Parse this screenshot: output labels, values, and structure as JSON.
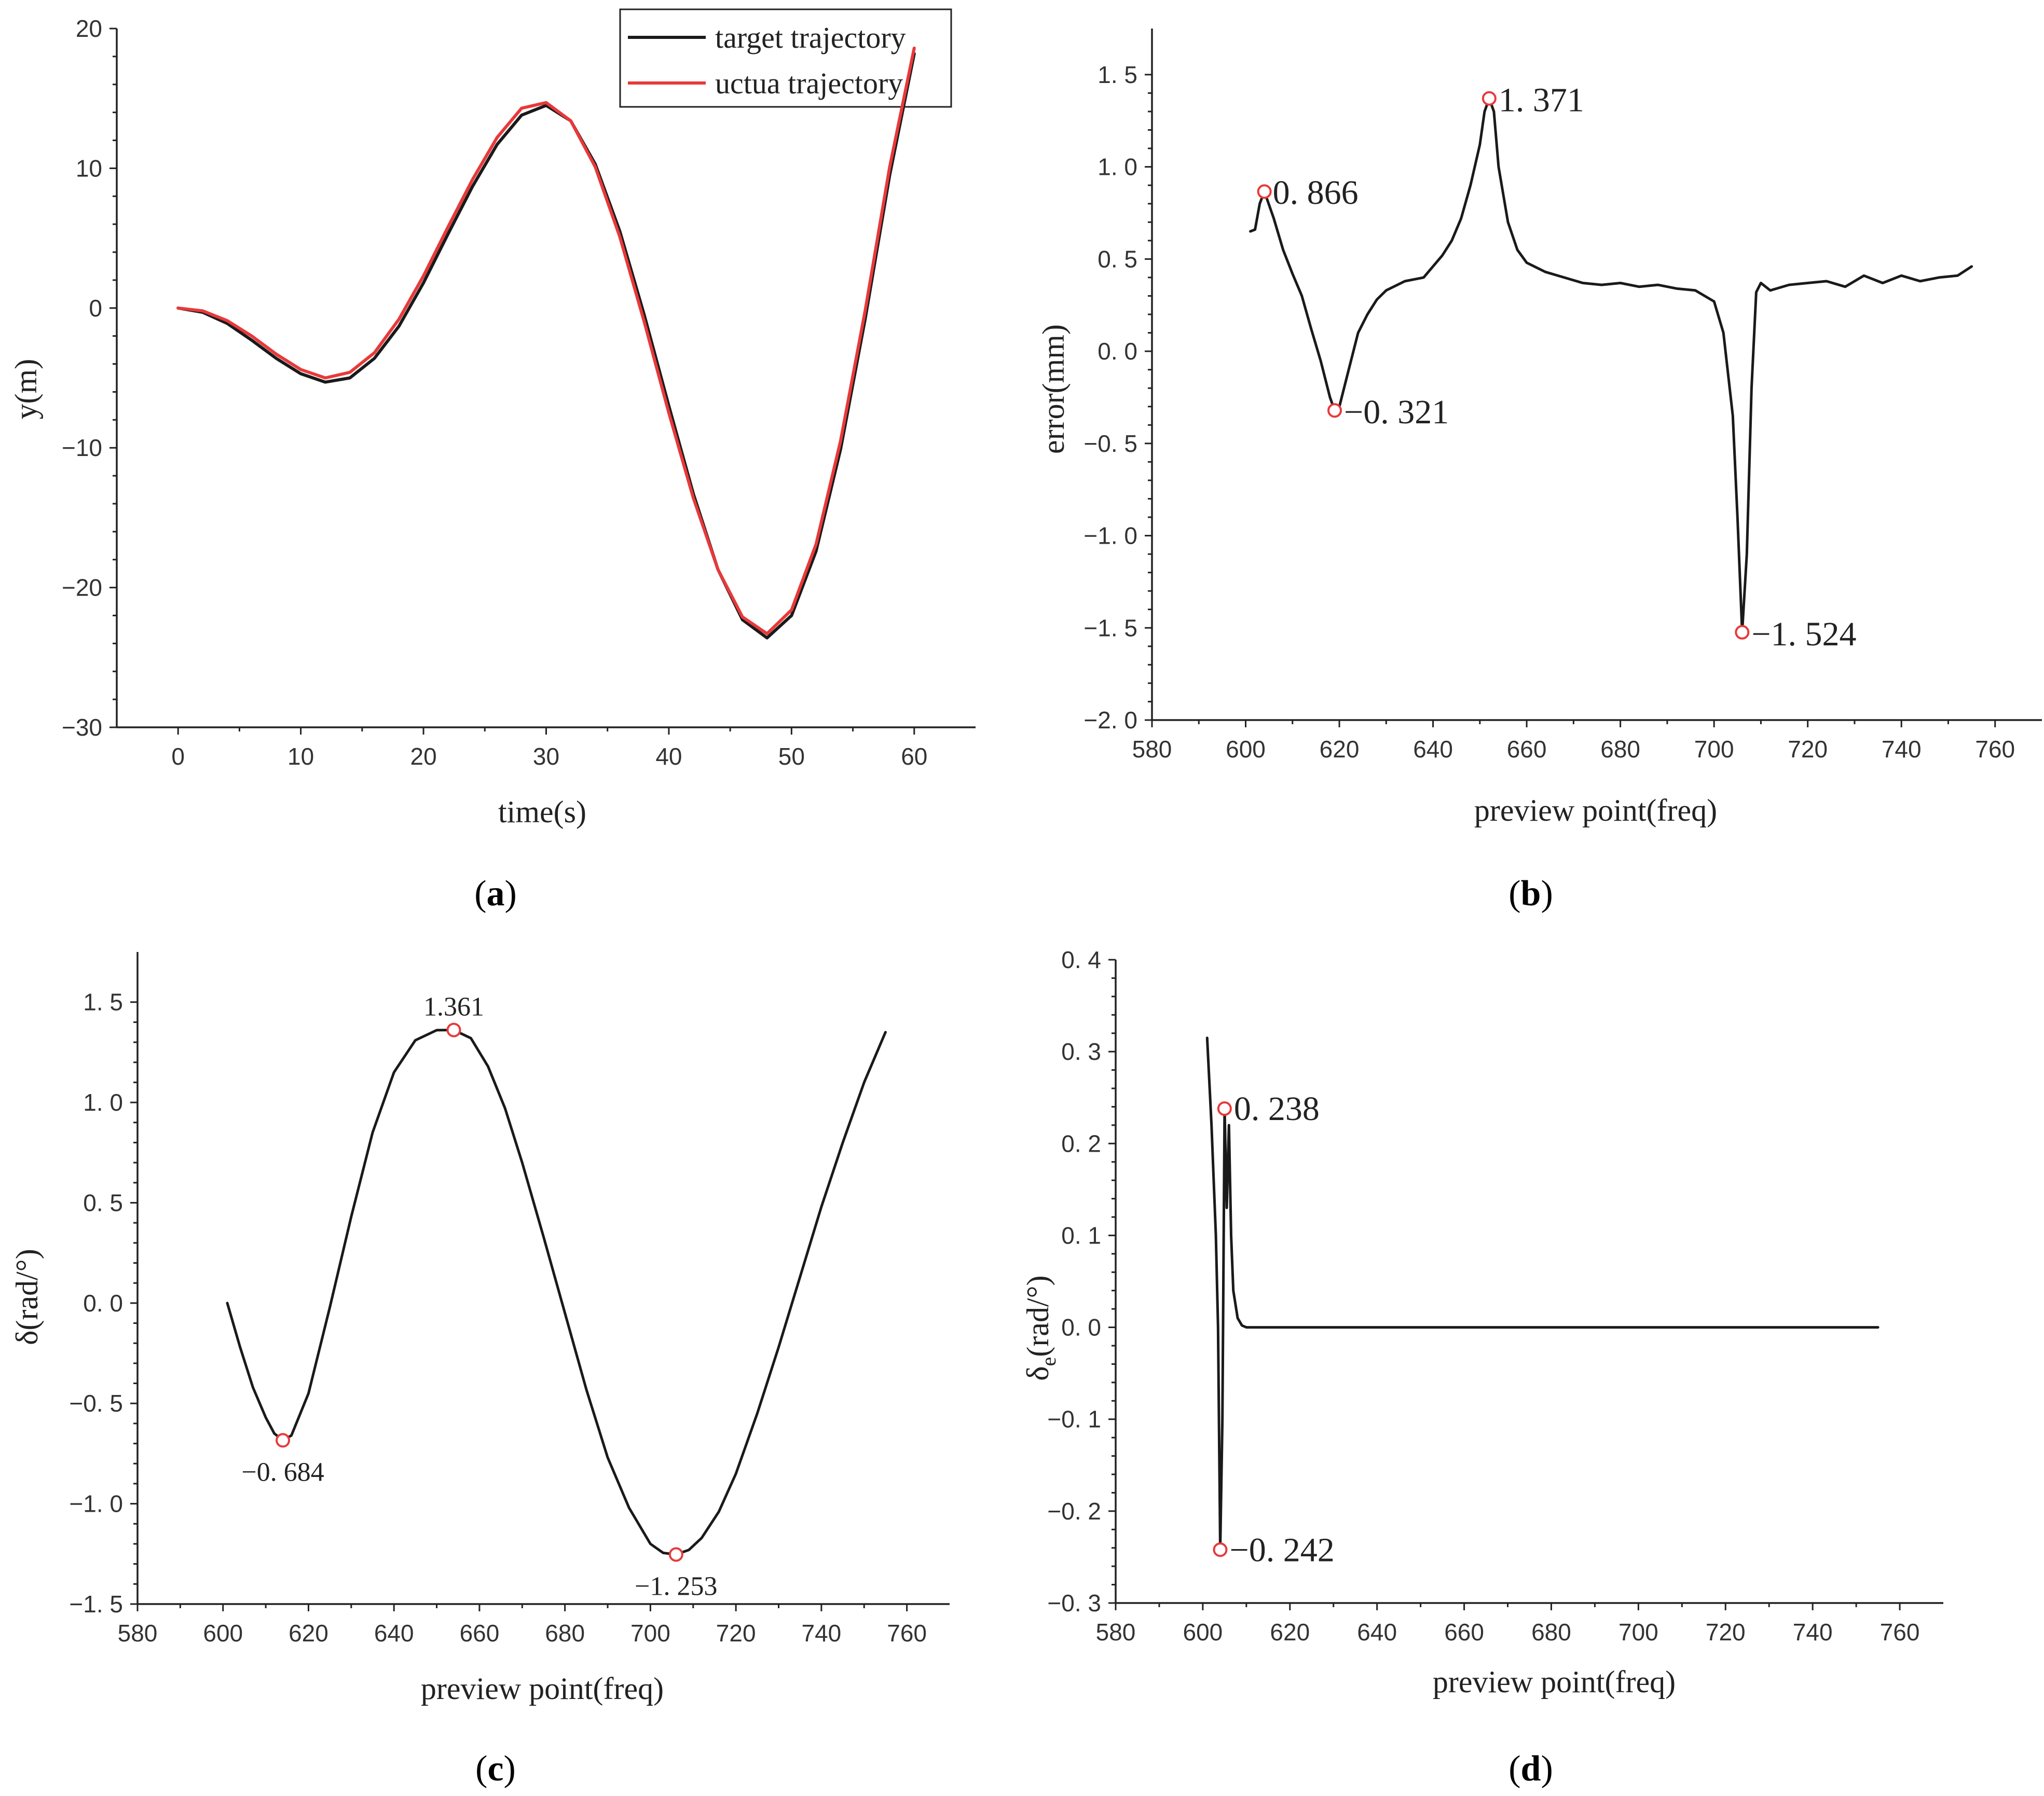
{
  "colors": {
    "black_line": "#1a1a1a",
    "red_line": "#e8393a",
    "marker": "#e8393a",
    "axis": "#222222"
  },
  "chart_data": [
    {
      "id": "a",
      "type": "line",
      "caption_prefix": "(",
      "caption_letter": "a",
      "caption_suffix": ")",
      "xlabel": "time(s)",
      "ylabel": "y(m)",
      "xlim": [
        -5,
        65
      ],
      "ylim": [
        -30,
        20
      ],
      "xticks": [
        0,
        10,
        20,
        30,
        40,
        50,
        60
      ],
      "yticks": [
        -30,
        -20,
        -10,
        0,
        10,
        20
      ],
      "legend": [
        "target trajectory",
        "uctua trajectory"
      ],
      "legend_position": "top-right",
      "series": [
        {
          "name": "target trajectory",
          "color": "#1a1a1a",
          "x": [
            0,
            2,
            4,
            6,
            8,
            10,
            12,
            14,
            16,
            18,
            20,
            22,
            24,
            26,
            28,
            30,
            32,
            34,
            36,
            38,
            40,
            42,
            44,
            46,
            48,
            50,
            52,
            54,
            56,
            58,
            60
          ],
          "y": [
            0,
            -0.3,
            -1.1,
            -2.3,
            -3.6,
            -4.7,
            -5.3,
            -5.0,
            -3.6,
            -1.3,
            1.8,
            5.3,
            8.7,
            11.7,
            13.8,
            14.5,
            13.4,
            10.3,
            5.5,
            -0.5,
            -7.0,
            -13.3,
            -18.7,
            -22.3,
            -23.6,
            -22.0,
            -17.4,
            -10.1,
            -0.8,
            9.5,
            18.2
          ]
        },
        {
          "name": "uctua trajectory",
          "color": "#e8393a",
          "x": [
            0,
            2,
            4,
            6,
            8,
            10,
            12,
            14,
            16,
            18,
            20,
            22,
            24,
            26,
            28,
            30,
            32,
            34,
            36,
            38,
            40,
            42,
            44,
            46,
            48,
            50,
            52,
            54,
            56,
            58,
            60
          ],
          "y": [
            0,
            -0.2,
            -0.9,
            -2.0,
            -3.3,
            -4.4,
            -5.0,
            -4.6,
            -3.2,
            -0.8,
            2.3,
            5.8,
            9.2,
            12.2,
            14.3,
            14.7,
            13.4,
            10.1,
            5.1,
            -1.0,
            -7.5,
            -13.6,
            -18.7,
            -22.1,
            -23.3,
            -21.6,
            -16.9,
            -9.5,
            -0.2,
            10.1,
            18.6
          ]
        }
      ]
    },
    {
      "id": "b",
      "type": "line",
      "caption_prefix": "(",
      "caption_letter": "b",
      "caption_suffix": ")",
      "xlabel": "preview point(freq)",
      "ylabel": "error(mm)",
      "xlim": [
        580,
        770
      ],
      "ylim": [
        -2.0,
        1.75
      ],
      "xticks": [
        580,
        600,
        620,
        640,
        660,
        680,
        700,
        720,
        740,
        760
      ],
      "yticks": [
        -2.0,
        -1.5,
        -1.0,
        -0.5,
        0.0,
        0.5,
        1.0,
        1.5
      ],
      "ytick_labels": [
        "−2. 0",
        "−1. 5",
        "−1. 0",
        "−0. 5",
        "0. 0",
        "0. 5",
        "1. 0",
        "1. 5"
      ],
      "series": [
        {
          "name": "error",
          "color": "#1a1a1a",
          "x": [
            601,
            602,
            603,
            604,
            606,
            608,
            610,
            612,
            614,
            616,
            618,
            619,
            620,
            622,
            624,
            626,
            628,
            630,
            634,
            638,
            642,
            644,
            646,
            648,
            650,
            651,
            652,
            653,
            654,
            656,
            658,
            660,
            664,
            668,
            672,
            676,
            680,
            684,
            688,
            692,
            696,
            700,
            702,
            704,
            705,
            706,
            707,
            708,
            709,
            710,
            712,
            716,
            720,
            724,
            728,
            732,
            736,
            740,
            744,
            748,
            752,
            755
          ],
          "y": [
            0.65,
            0.66,
            0.8,
            0.866,
            0.72,
            0.55,
            0.42,
            0.3,
            0.12,
            -0.05,
            -0.25,
            -0.321,
            -0.3,
            -0.1,
            0.1,
            0.2,
            0.28,
            0.33,
            0.38,
            0.4,
            0.52,
            0.6,
            0.72,
            0.9,
            1.12,
            1.3,
            1.371,
            1.3,
            1.0,
            0.7,
            0.55,
            0.48,
            0.43,
            0.4,
            0.37,
            0.36,
            0.37,
            0.35,
            0.36,
            0.34,
            0.33,
            0.27,
            0.1,
            -0.35,
            -0.9,
            -1.524,
            -1.1,
            -0.2,
            0.32,
            0.37,
            0.33,
            0.36,
            0.37,
            0.38,
            0.35,
            0.41,
            0.37,
            0.41,
            0.38,
            0.4,
            0.41,
            0.46
          ]
        }
      ],
      "annotations": [
        {
          "x": 604,
          "y": 0.866,
          "label": "0. 866"
        },
        {
          "x": 619,
          "y": -0.321,
          "label": "−0. 321"
        },
        {
          "x": 652,
          "y": 1.371,
          "label": "1. 371"
        },
        {
          "x": 706,
          "y": -1.524,
          "label": "−1. 524"
        }
      ]
    },
    {
      "id": "c",
      "type": "line",
      "caption_prefix": "(",
      "caption_letter": "c",
      "caption_suffix": ")",
      "xlabel": "preview point(freq)",
      "ylabel": "δ(rad/°)",
      "xlim": [
        580,
        770
      ],
      "ylim": [
        -1.5,
        1.75
      ],
      "xticks": [
        580,
        600,
        620,
        640,
        660,
        680,
        700,
        720,
        740,
        760
      ],
      "yticks": [
        -1.5,
        -1.0,
        -0.5,
        0.0,
        0.5,
        1.0,
        1.5
      ],
      "ytick_labels": [
        "−1. 5",
        "−1. 0",
        "−0. 5",
        "0. 0",
        "0. 5",
        "1. 0",
        "1. 5"
      ],
      "series": [
        {
          "name": "delta",
          "color": "#1a1a1a",
          "x": [
            601,
            604,
            607,
            610,
            612,
            614,
            616,
            620,
            625,
            630,
            635,
            640,
            645,
            650,
            654,
            658,
            662,
            666,
            670,
            675,
            680,
            685,
            690,
            695,
            700,
            703,
            706,
            709,
            712,
            716,
            720,
            725,
            730,
            735,
            740,
            745,
            750,
            755
          ],
          "y": [
            0.0,
            -0.22,
            -0.42,
            -0.57,
            -0.65,
            -0.684,
            -0.66,
            -0.45,
            -0.02,
            0.43,
            0.85,
            1.15,
            1.31,
            1.36,
            1.361,
            1.32,
            1.18,
            0.97,
            0.7,
            0.33,
            -0.05,
            -0.43,
            -0.77,
            -1.02,
            -1.2,
            -1.245,
            -1.253,
            -1.23,
            -1.17,
            -1.04,
            -0.85,
            -0.55,
            -0.22,
            0.13,
            0.48,
            0.8,
            1.1,
            1.35
          ]
        }
      ],
      "annotations": [
        {
          "x": 614,
          "y": -0.684,
          "label": "−0. 684",
          "position": "below"
        },
        {
          "x": 654,
          "y": 1.361,
          "label": "1.361",
          "position": "above"
        },
        {
          "x": 706,
          "y": -1.253,
          "label": "−1. 253",
          "position": "below"
        }
      ]
    },
    {
      "id": "d",
      "type": "line",
      "caption_prefix": "(",
      "caption_letter": "d",
      "caption_suffix": ")",
      "xlabel": "preview point(freq)",
      "ylabel": "δe(rad/°)",
      "ylabel_main": "δ",
      "ylabel_sub": "e",
      "ylabel_rest": "(rad/°)",
      "xlim": [
        580,
        770
      ],
      "ylim": [
        -0.3,
        0.4
      ],
      "xticks": [
        580,
        600,
        620,
        640,
        660,
        680,
        700,
        720,
        740,
        760
      ],
      "yticks": [
        -0.3,
        -0.2,
        -0.1,
        0.0,
        0.1,
        0.2,
        0.3,
        0.4
      ],
      "ytick_labels": [
        "−0. 3",
        "−0. 2",
        "−0. 1",
        "0. 0",
        "0. 1",
        "0. 2",
        "0. 3",
        "0. 4"
      ],
      "series": [
        {
          "name": "delta_e",
          "color": "#1a1a1a",
          "x": [
            601,
            602,
            603,
            603.5,
            604,
            604.5,
            605,
            605.5,
            606,
            606.5,
            607,
            608,
            609,
            610,
            612,
            620,
            640,
            680,
            720,
            755
          ],
          "y": [
            0.315,
            0.22,
            0.1,
            0.0,
            -0.242,
            -0.1,
            0.238,
            0.13,
            0.22,
            0.1,
            0.04,
            0.01,
            0.002,
            0.0,
            0.0,
            0.0,
            0.0,
            0.0,
            0.0,
            0.0
          ]
        }
      ],
      "annotations": [
        {
          "x": 605,
          "y": 0.238,
          "label": "0. 238"
        },
        {
          "x": 604,
          "y": -0.242,
          "label": "−0. 242"
        }
      ]
    }
  ]
}
